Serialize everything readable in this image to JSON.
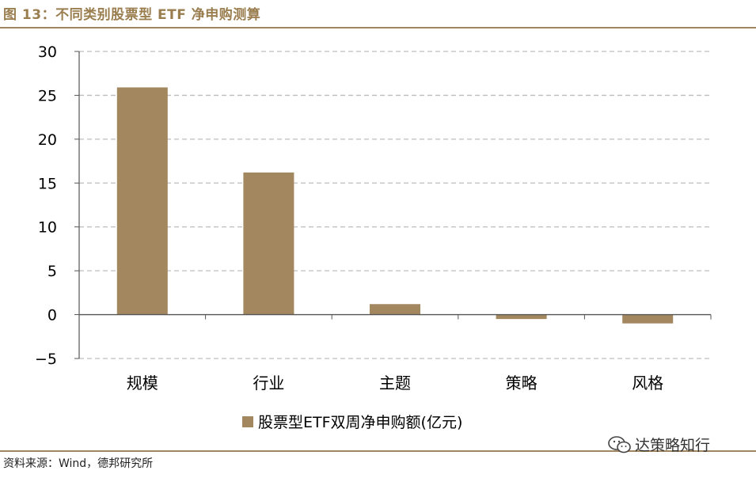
{
  "figure": {
    "title": "图 13：不同类别股票型 ETF 净申购测算",
    "source": "资料来源：Wind，德邦研究所",
    "watermark": "达策略知行"
  },
  "colors": {
    "bar": "#a3875f",
    "grid": "#bdbdbd",
    "axis": "#555555",
    "accent": "#9a7e4f"
  },
  "chart_data": {
    "type": "bar",
    "categories": [
      "规模",
      "行业",
      "主题",
      "策略",
      "风格"
    ],
    "series": [
      {
        "name": "股票型ETF双周净申购额(亿元)",
        "values": [
          25.9,
          16.2,
          1.2,
          -0.5,
          -1.0
        ]
      }
    ],
    "ylim": [
      -5,
      30
    ],
    "yticks": [
      -5,
      0,
      5,
      10,
      15,
      20,
      25,
      30
    ],
    "grid": true,
    "legend": "bottom"
  }
}
